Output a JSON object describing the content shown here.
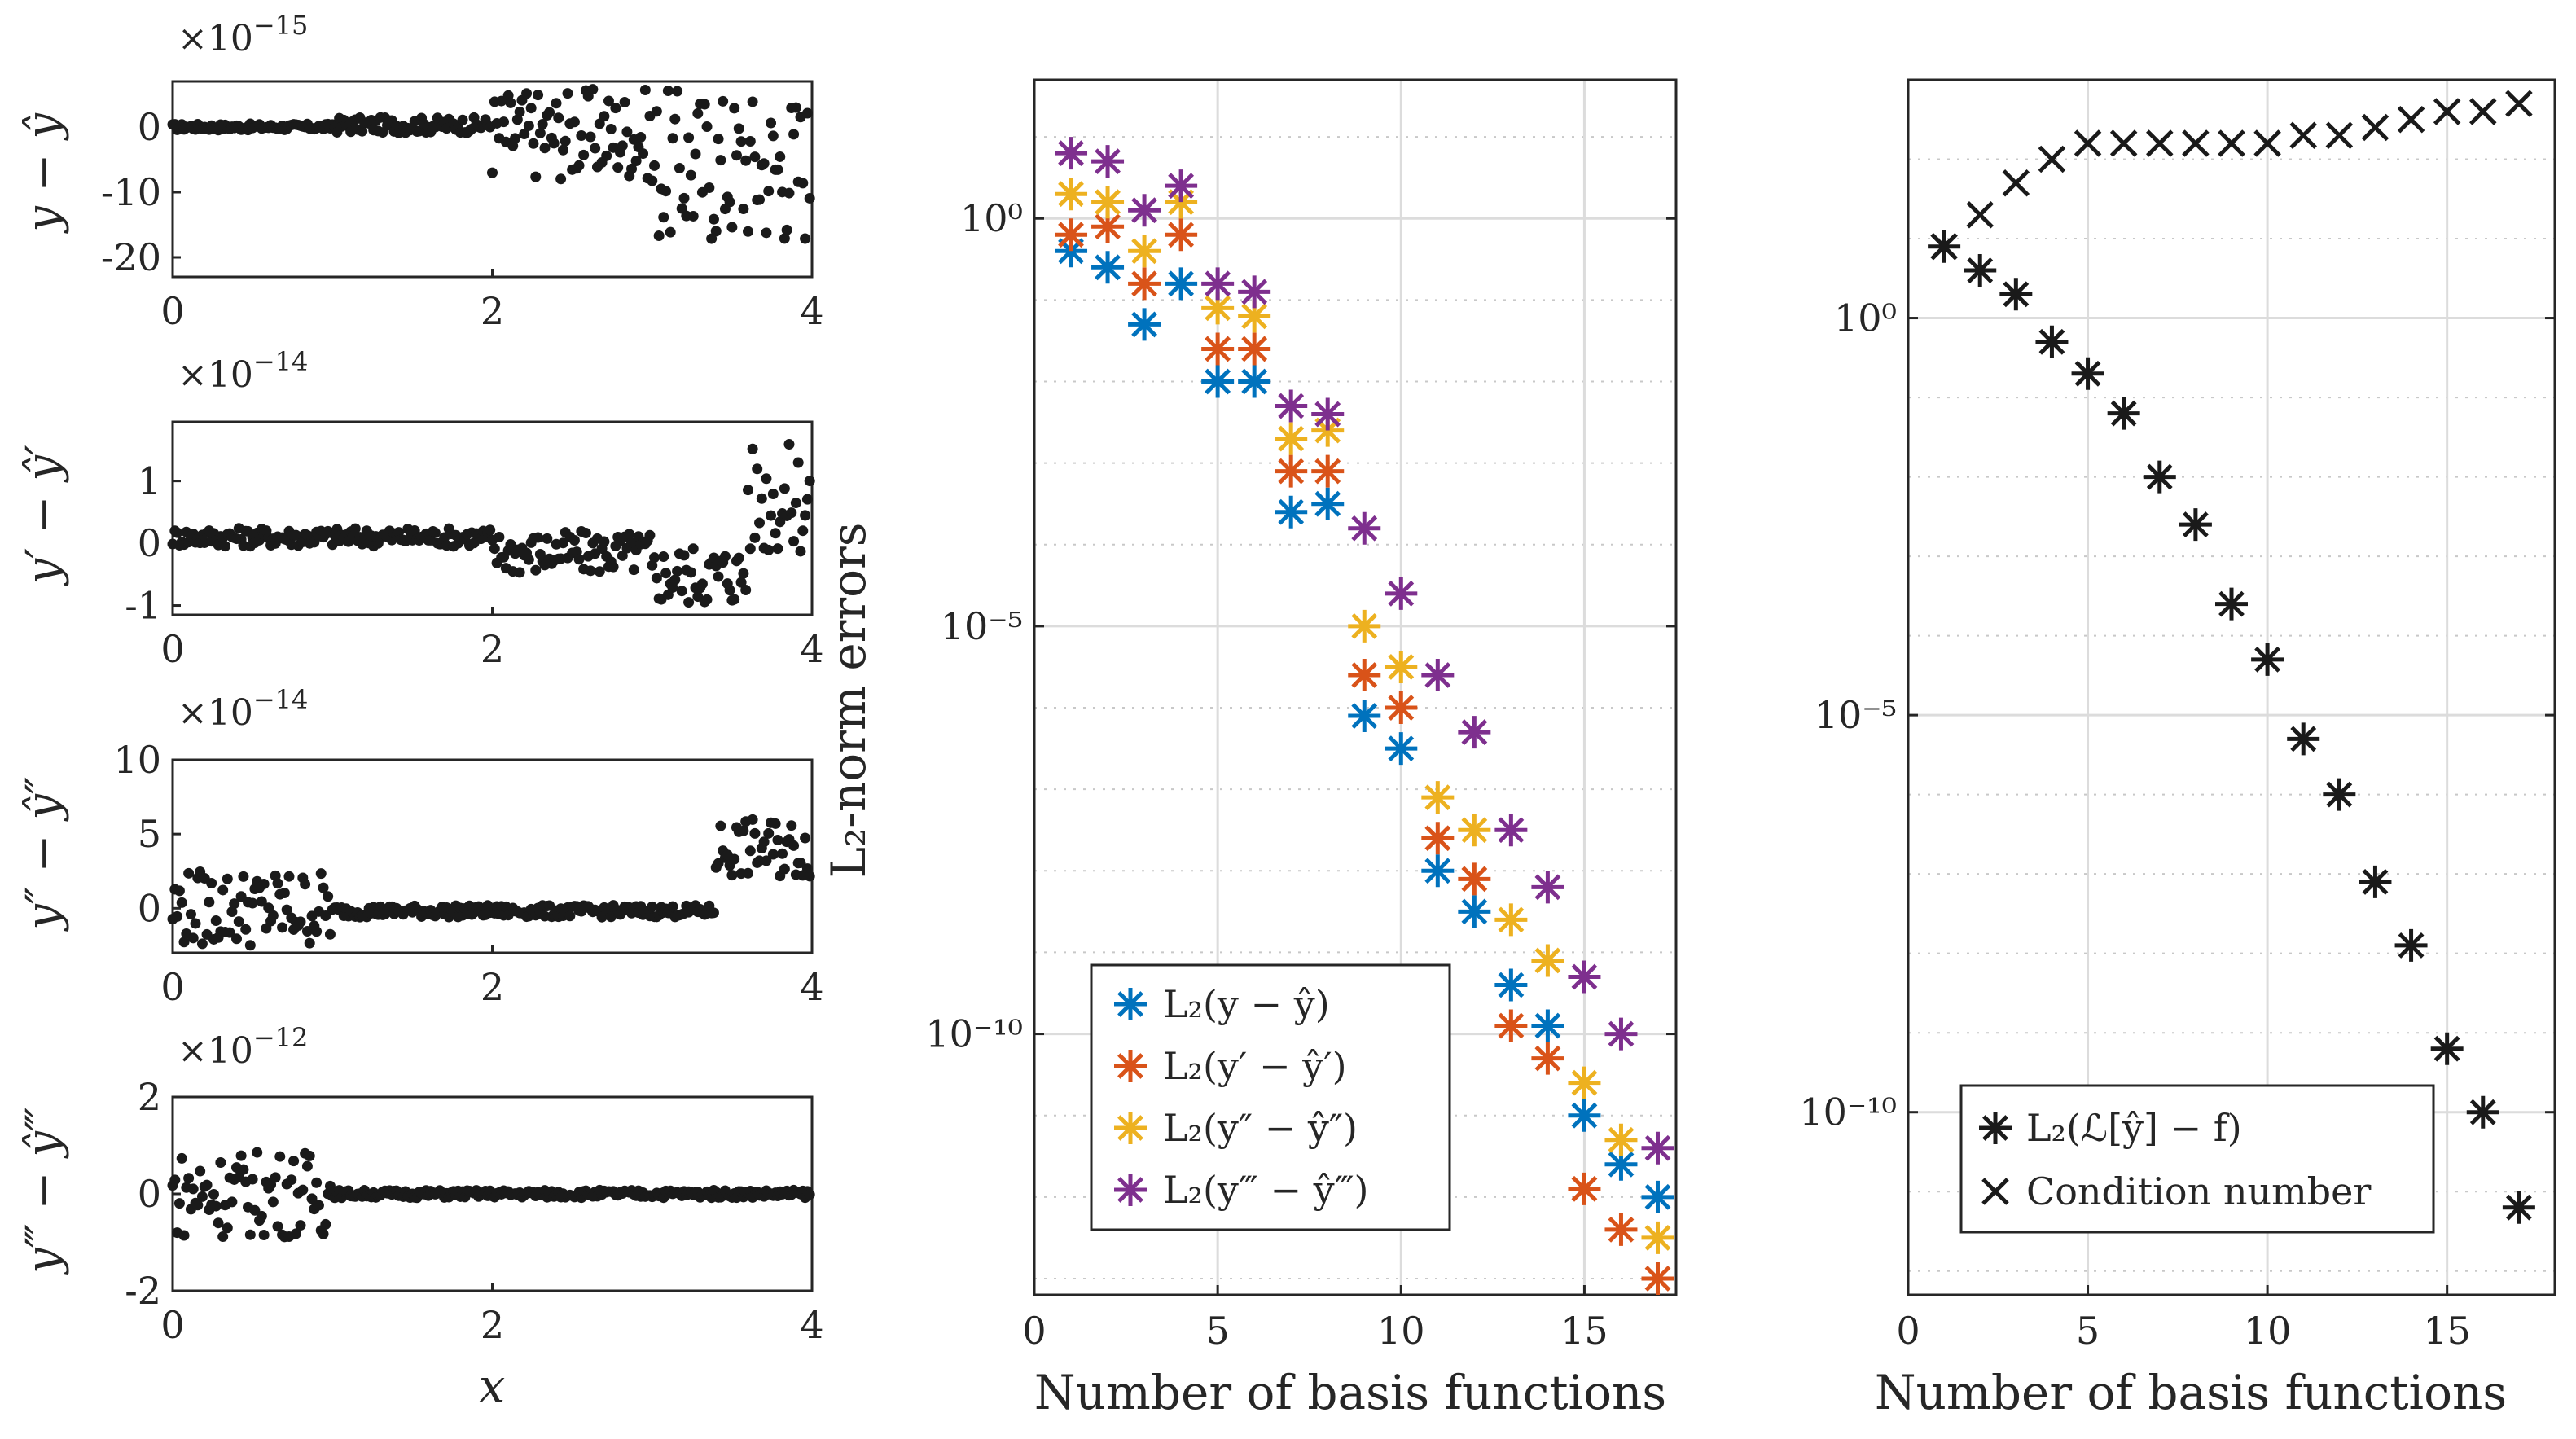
{
  "chart_data": [
    {
      "type": "scatter",
      "panel": "left-1",
      "ylabel": "y − ŷ",
      "exponent_label": "×10",
      "exponent": "−15",
      "xlim": [
        0,
        4
      ],
      "ylim": [
        -23,
        7
      ],
      "xticks": [
        0,
        2,
        4
      ],
      "xticklabels": [
        "0",
        "2",
        "4"
      ],
      "yticks": [
        0,
        -10,
        -20
      ],
      "yticklabels": [
        "0",
        "-10",
        "-20"
      ],
      "noise": [
        {
          "x0": 0,
          "x1": 1,
          "amp": 0.5,
          "off": 0
        },
        {
          "x0": 1,
          "x1": 2,
          "amp": 1.2,
          "off": 0.3
        },
        {
          "x0": 2,
          "x1": 3,
          "amp": 7,
          "off": -1
        },
        {
          "x0": 3,
          "x1": 4,
          "amp": 12,
          "off": -6
        }
      ]
    },
    {
      "type": "scatter",
      "panel": "left-2",
      "ylabel": "y′ − ŷ′",
      "exponent_label": "×10",
      "exponent": "−14",
      "xlim": [
        0,
        4
      ],
      "ylim": [
        -1.15,
        1.95
      ],
      "xticks": [
        0,
        2,
        4
      ],
      "xticklabels": [
        "0",
        "2",
        "4"
      ],
      "yticks": [
        1,
        0,
        -1
      ],
      "yticklabels": [
        "1",
        "0",
        "-1"
      ],
      "noise": [
        {
          "x0": 0,
          "x1": 2,
          "amp": 0.15,
          "off": 0.1
        },
        {
          "x0": 2,
          "x1": 3,
          "amp": 0.35,
          "off": -0.15
        },
        {
          "x0": 3,
          "x1": 3.6,
          "amp": 0.5,
          "off": -0.5
        },
        {
          "x0": 3.6,
          "x1": 4,
          "amp": 0.9,
          "off": 0.7
        }
      ]
    },
    {
      "type": "scatter",
      "panel": "left-3",
      "ylabel": "y″ − ŷ″",
      "exponent_label": "×10",
      "exponent": "−14",
      "xlim": [
        0,
        4
      ],
      "ylim": [
        -3,
        10
      ],
      "xticks": [
        0,
        2,
        4
      ],
      "xticklabels": [
        "0",
        "2",
        "4"
      ],
      "yticks": [
        10,
        5,
        0
      ],
      "yticklabels": [
        "10",
        "5",
        "0"
      ],
      "noise": [
        {
          "x0": 0,
          "x1": 1,
          "amp": 2.6,
          "off": 0
        },
        {
          "x0": 1,
          "x1": 3.4,
          "amp": 0.4,
          "off": -0.2
        },
        {
          "x0": 3.4,
          "x1": 4,
          "amp": 2,
          "off": 4
        }
      ]
    },
    {
      "type": "scatter",
      "panel": "left-4",
      "ylabel": "y‴ − ŷ‴",
      "exponent_label": "×10",
      "exponent": "−12",
      "xlabel": "x",
      "xlim": [
        0,
        4
      ],
      "ylim": [
        -2,
        2
      ],
      "xticks": [
        0,
        2,
        4
      ],
      "xticklabels": [
        "0",
        "2",
        "4"
      ],
      "yticks": [
        2,
        0,
        -2
      ],
      "yticklabels": [
        "2",
        "0",
        "-2"
      ],
      "noise": [
        {
          "x0": 0,
          "x1": 1,
          "amp": 0.9,
          "off": 0
        },
        {
          "x0": 1,
          "x1": 4,
          "amp": 0.08,
          "off": 0
        }
      ]
    },
    {
      "type": "scatter",
      "panel": "middle",
      "title": "",
      "xlabel": "Number of basis functions",
      "ylabel": "L₂-norm errors",
      "yscale": "log",
      "xlim": [
        0,
        17.5
      ],
      "ylim_log10": [
        -13.2,
        1.7
      ],
      "xticks": [
        0,
        5,
        10,
        15
      ],
      "xticklabels": [
        "0",
        "5",
        "10",
        "15"
      ],
      "yticks_log10": [
        0,
        -5,
        -10
      ],
      "yticklabels": [
        "10⁰",
        "10⁻⁵",
        "10⁻¹⁰"
      ],
      "legend_position": "lower-left",
      "x": [
        1,
        2,
        3,
        4,
        5,
        6,
        7,
        8,
        9,
        10,
        11,
        12,
        13,
        14,
        15,
        16,
        17
      ],
      "series": [
        {
          "name": "L₂(y − ŷ)",
          "color": "#0072BD",
          "log10_values": [
            -0.4,
            -0.6,
            -1.3,
            -0.8,
            -2.0,
            -2.0,
            -3.6,
            -3.5,
            -6.1,
            -6.5,
            -8.0,
            -8.5,
            -9.4,
            -9.9,
            -11.0,
            -11.6,
            -12.0
          ]
        },
        {
          "name": "L₂(y′ − ŷ′)",
          "color": "#D95319",
          "log10_values": [
            -0.2,
            -0.1,
            -0.8,
            -0.2,
            -1.6,
            -1.6,
            -3.1,
            -3.1,
            -5.6,
            -6.0,
            -7.6,
            -8.1,
            -9.9,
            -10.3,
            -11.9,
            -12.4,
            -13.0
          ]
        },
        {
          "name": "L₂(y″ − ŷ″)",
          "color": "#EDB120",
          "log10_values": [
            0.3,
            0.2,
            -0.4,
            0.2,
            -1.1,
            -1.2,
            -2.7,
            -2.6,
            -5.0,
            -5.5,
            -7.1,
            -7.5,
            -8.6,
            -9.1,
            -10.6,
            -11.3,
            -12.5
          ]
        },
        {
          "name": "L₂(y‴ − ŷ‴)",
          "color": "#7E2F8E",
          "log10_values": [
            0.8,
            0.7,
            0.1,
            0.4,
            -0.8,
            -0.9,
            -2.3,
            -2.4,
            -3.8,
            -4.6,
            -5.6,
            -6.3,
            -7.5,
            -8.2,
            -9.3,
            -10.0,
            -11.4
          ]
        }
      ]
    },
    {
      "type": "scatter",
      "panel": "right",
      "xlabel": "Number of basis functions",
      "yscale": "log",
      "xlim": [
        0,
        18
      ],
      "ylim_log10": [
        -12.3,
        3.0
      ],
      "xticks": [
        0,
        5,
        10,
        15
      ],
      "xticklabels": [
        "0",
        "5",
        "10",
        "15"
      ],
      "yticks_log10": [
        0,
        -5,
        -10
      ],
      "yticklabels": [
        "10⁰",
        "10⁻⁵",
        "10⁻¹⁰"
      ],
      "legend_position": "lower-right",
      "x": [
        1,
        2,
        3,
        4,
        5,
        6,
        7,
        8,
        9,
        10,
        11,
        12,
        13,
        14,
        15,
        16,
        17
      ],
      "series": [
        {
          "name": "L₂(ℒ[ŷ] − f)",
          "marker": "asterisk",
          "color": "#1A1A1A",
          "log10_values": [
            0.9,
            0.6,
            0.3,
            -0.3,
            -0.7,
            -1.2,
            -2.0,
            -2.6,
            -3.6,
            -4.3,
            -5.3,
            -6.0,
            -7.1,
            -7.9,
            -9.2,
            -10.0,
            -11.2
          ]
        },
        {
          "name": "Condition number",
          "marker": "x",
          "color": "#1A1A1A",
          "log10_values": [
            0.9,
            1.3,
            1.7,
            2.0,
            2.2,
            2.2,
            2.2,
            2.2,
            2.2,
            2.2,
            2.3,
            2.3,
            2.4,
            2.5,
            2.6,
            2.6,
            2.7
          ]
        }
      ]
    }
  ]
}
